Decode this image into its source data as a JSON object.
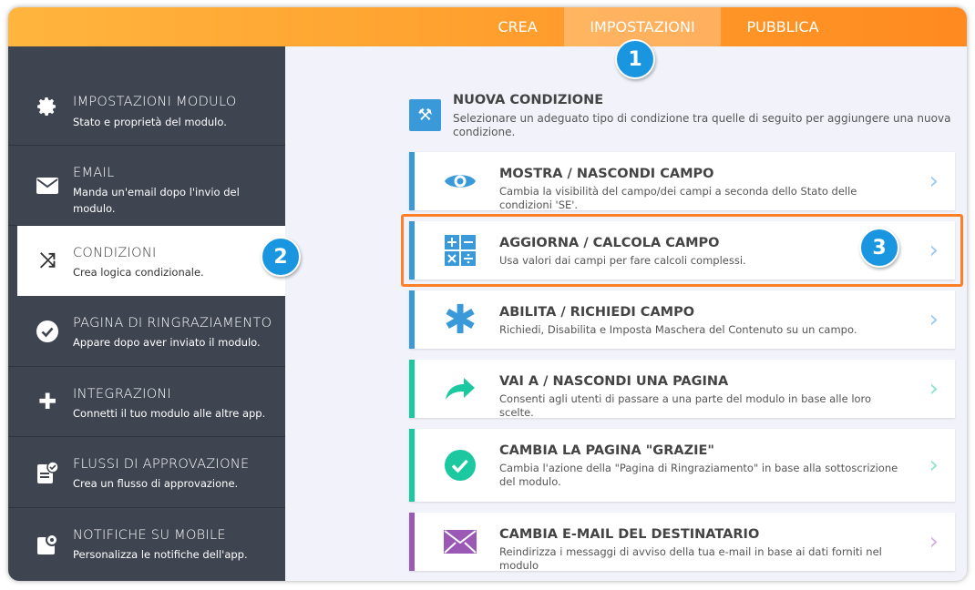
{
  "tabs": [
    {
      "label": "CREA"
    },
    {
      "label": "IMPOSTAZIONI",
      "active": true
    },
    {
      "label": "PUBBLICA"
    }
  ],
  "sidebar": {
    "items": [
      {
        "title": "IMPOSTAZIONI MODULO",
        "desc": "Stato e proprietà del modulo.",
        "icon": "gear-icon"
      },
      {
        "title": "EMAIL",
        "desc": "Manda un'email dopo l'invio del modulo.",
        "icon": "envelope-icon"
      },
      {
        "title": "CONDIZIONI",
        "desc": "Crea logica condizionale.",
        "icon": "shuffle-icon",
        "active": true
      },
      {
        "title": "PAGINA DI RINGRAZIAMENTO",
        "desc": "Appare dopo aver inviato il modulo.",
        "icon": "check-circle-icon"
      },
      {
        "title": "INTEGRAZIONI",
        "desc": "Connetti il tuo modulo alle altre app.",
        "icon": "puzzle-icon"
      },
      {
        "title": "FLUSSI DI APPROVAZIONE",
        "desc": "Crea un flusso di approvazione.",
        "icon": "approval-icon"
      },
      {
        "title": "NOTIFICHE SU MOBILE",
        "desc": "Personalizza le notifiche dell'app.",
        "icon": "mobile-notification-icon"
      }
    ]
  },
  "main": {
    "title": "NUOVA CONDIZIONE",
    "desc": "Selezionare un adeguato tipo di condizione tra quelle di seguito per aggiungere una nuova condizione.",
    "cards": [
      {
        "title": "MOSTRA / NASCONDI CAMPO",
        "desc": "Cambia la visibilità del campo/dei campi a seconda dello Stato delle condizioni 'SE'.",
        "icon": "eye-icon",
        "color": "#3a9ad9"
      },
      {
        "title": "AGGIORNA / CALCOLA CAMPO",
        "desc": "Usa valori dai campi per fare calcoli complessi.",
        "icon": "calculator-icon",
        "color": "#3a9ad9"
      },
      {
        "title": "ABILITA / RICHIEDI CAMPO",
        "desc": "Richiedi, Disabilita e Imposta Maschera del Contenuto su un campo.",
        "icon": "asterisk-icon",
        "color": "#3a9ad9"
      },
      {
        "title": "VAI A / NASCONDI UNA PAGINA",
        "desc": "Consenti agli utenti di passare a una parte del modulo in base alle loro scelte.",
        "icon": "arrow-share-icon",
        "color": "#1cc8a0"
      },
      {
        "title": "CAMBIA LA PAGINA \"GRAZIE\"",
        "desc": "Cambia l'azione della \"Pagina di Ringraziamento\" in base alla sottoscrizione del modulo.",
        "icon": "check-circle-icon",
        "color": "#1cc8a0"
      },
      {
        "title": "CAMBIA E-MAIL DEL DESTINATARIO",
        "desc": "Reindirizza i messaggi di avviso della tua e-mail in base ai dati forniti nel modulo",
        "icon": "envelope-icon",
        "color": "#9b59b6"
      }
    ]
  },
  "badges": [
    "1",
    "2",
    "3"
  ],
  "colors": {
    "header_start": "#ffb53e",
    "header_end": "#ff8a1f",
    "sidebar": "#3e4450",
    "highlight": "#ff7f27",
    "badge": "#1a96e0"
  }
}
